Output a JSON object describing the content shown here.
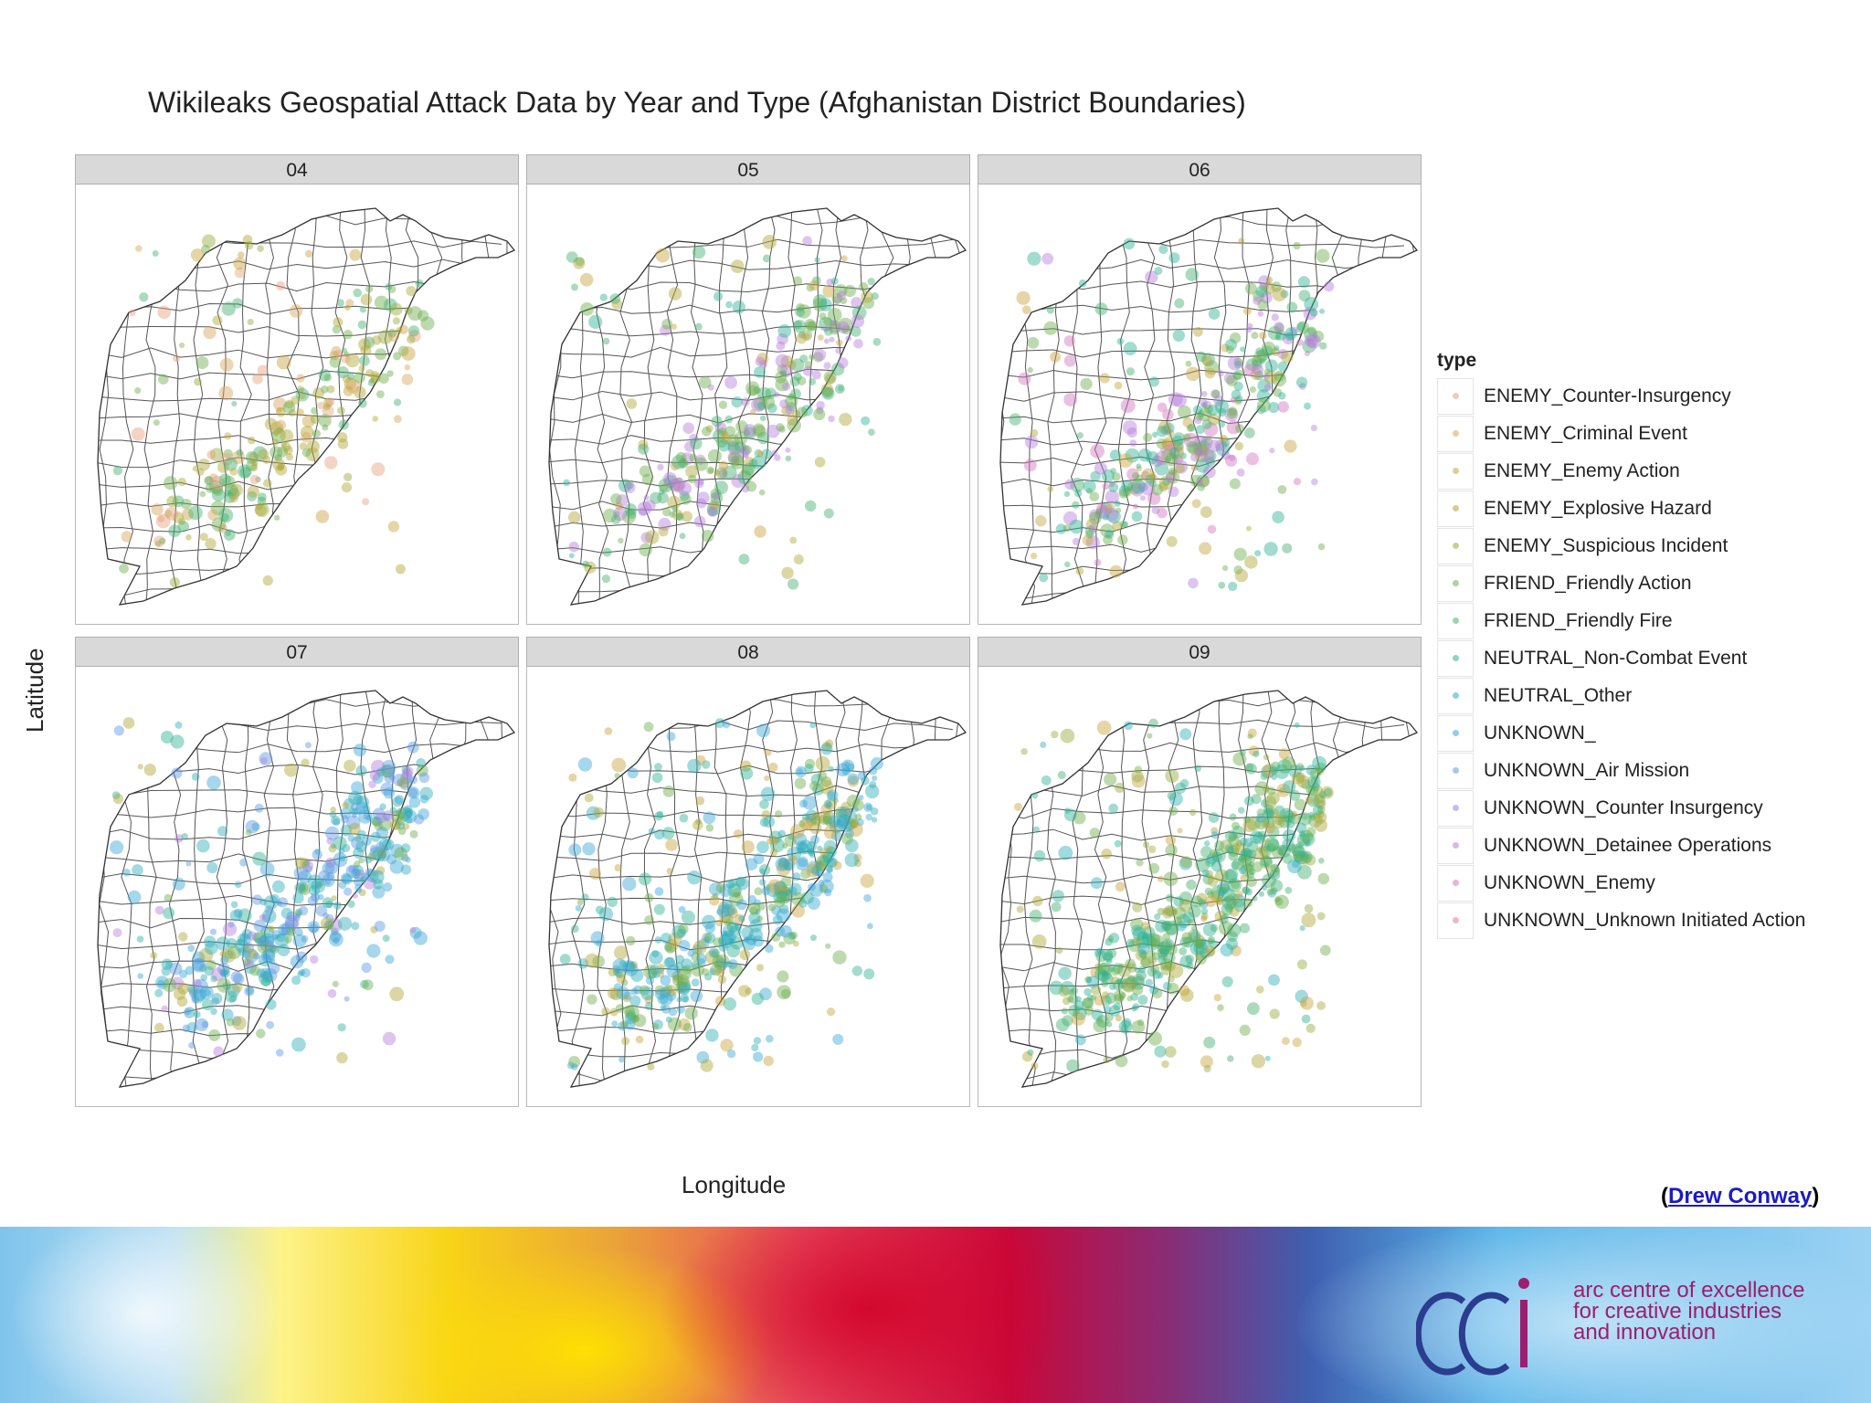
{
  "chart_data": {
    "type": "map",
    "title": "Wikileaks Geospatial Attack Data by Year and Type (Afghanistan District Boundaries)",
    "xlabel": "Longitude",
    "ylabel": "Latitude",
    "facets": [
      "04",
      "05",
      "06",
      "07",
      "08",
      "09"
    ],
    "legend": {
      "title": "type",
      "placement": "right",
      "items": [
        {
          "label": "ENEMY_Counter-Insurgency",
          "color": "#e6a07a"
        },
        {
          "label": "ENEMY_Criminal Event",
          "color": "#d8a35a"
        },
        {
          "label": "ENEMY_Enemy Action",
          "color": "#c7a23c"
        },
        {
          "label": "ENEMY_Explosive Hazard",
          "color": "#b0a636"
        },
        {
          "label": "ENEMY_Suspicious Incident",
          "color": "#95ab3c"
        },
        {
          "label": "FRIEND_Friendly Action",
          "color": "#6cae4e"
        },
        {
          "label": "FRIEND_Friendly Fire",
          "color": "#45b06e"
        },
        {
          "label": "NEUTRAL_Non-Combat Event",
          "color": "#2fb194"
        },
        {
          "label": "NEUTRAL_Other",
          "color": "#2eaeb8"
        },
        {
          "label": "UNKNOWN_",
          "color": "#39a6d5"
        },
        {
          "label": "UNKNOWN_Air Mission",
          "color": "#5a9ae3"
        },
        {
          "label": "UNKNOWN_Counter Insurgency",
          "color": "#8a8ce6"
        },
        {
          "label": "UNKNOWN_Detainee Operations",
          "color": "#b57edc"
        },
        {
          "label": "UNKNOWN_Enemy",
          "color": "#d276c2"
        },
        {
          "label": "UNKNOWN_Unknown Initiated Action",
          "color": "#e07aa0"
        }
      ]
    },
    "grid": false
  },
  "credit": {
    "open": "(",
    "link_text": "Drew Conway",
    "close": ")"
  },
  "logo": {
    "mark": "CCi",
    "tagline": [
      "arc centre of excellence",
      "for creative industries",
      "and innovation"
    ]
  }
}
